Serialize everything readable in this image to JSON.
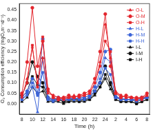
{
  "chart_data": {
    "type": "line",
    "x_label": "Time (h)",
    "y_label": "O₂ Consumption efficiency (mgO₂m⁻²d⁻¹)",
    "categories": [
      "8",
      null,
      "10",
      null,
      "12",
      null,
      "14",
      null,
      "16",
      null,
      "18",
      null,
      "20",
      null,
      "22",
      null,
      "24",
      null,
      "2",
      null,
      "4",
      null,
      "6",
      null,
      "8"
    ],
    "series": [
      {
        "name": "O-L",
        "color": "#e3262d",
        "marker": "triangle",
        "values": [
          0.03,
          0.12,
          0.27,
          0.1,
          0.22,
          0.05,
          0.04,
          0.03,
          0.03,
          0.03,
          0.04,
          0.03,
          0.04,
          0.05,
          0.1,
          0.2,
          0.38,
          0.22,
          0.06,
          0.04,
          0.03,
          0.03,
          0.03,
          0.03,
          0.04
        ]
      },
      {
        "name": "O-M",
        "color": "#e3262d",
        "marker": "circle",
        "values": [
          0.05,
          0.2,
          0.46,
          0.18,
          0.3,
          0.07,
          0.03,
          0.02,
          0.03,
          0.04,
          0.03,
          0.04,
          0.05,
          0.06,
          0.12,
          0.25,
          0.43,
          0.18,
          0.05,
          0.03,
          0.04,
          0.03,
          0.02,
          0.03,
          0.05
        ]
      },
      {
        "name": "O-H",
        "color": "#e3262d",
        "marker": "square",
        "values": [
          0.04,
          0.1,
          0.28,
          0.08,
          0.32,
          0.06,
          0.04,
          0.03,
          0.02,
          0.03,
          0.03,
          0.04,
          0.04,
          0.05,
          0.1,
          0.18,
          0.3,
          0.25,
          0.05,
          0.04,
          0.03,
          0.03,
          0.03,
          0.02,
          0.04
        ]
      },
      {
        "name": "H-L",
        "color": "#3c64d8",
        "marker": "triangle",
        "values": [
          0.02,
          0.04,
          0.08,
          -0.04,
          0.22,
          0.02,
          0.01,
          0.02,
          0.02,
          0.02,
          0.03,
          0.02,
          0.03,
          0.04,
          0.06,
          0.12,
          0.22,
          0.2,
          0.04,
          0.02,
          0.02,
          0.02,
          0.01,
          0.02,
          0.03
        ]
      },
      {
        "name": "H-M",
        "color": "#3c64d8",
        "marker": "circle",
        "values": [
          0.03,
          0.06,
          0.12,
          0.05,
          0.31,
          0.03,
          0.02,
          0.03,
          0.02,
          0.03,
          0.02,
          0.03,
          0.03,
          0.04,
          0.08,
          0.15,
          0.25,
          0.26,
          0.03,
          0.03,
          0.02,
          0.02,
          0.02,
          0.03,
          0.03
        ]
      },
      {
        "name": "H-H",
        "color": "#3c64d8",
        "marker": "square",
        "values": [
          0.02,
          0.05,
          0.1,
          0.04,
          0.15,
          0.02,
          0.02,
          0.02,
          0.02,
          0.02,
          0.03,
          0.02,
          0.02,
          0.03,
          0.06,
          0.1,
          0.17,
          0.14,
          0.03,
          0.02,
          0.02,
          0.02,
          0.02,
          0.02,
          0.03
        ]
      },
      {
        "name": "I-L",
        "color": "#111111",
        "marker": "triangle",
        "values": [
          0.01,
          0.03,
          0.08,
          0.05,
          0.06,
          0.01,
          0.01,
          0.01,
          0.0,
          0.01,
          0.01,
          0.01,
          0.01,
          0.02,
          0.04,
          0.08,
          0.12,
          0.07,
          0.02,
          0.01,
          0.01,
          0.01,
          0.0,
          0.01,
          0.02
        ]
      },
      {
        "name": "I-M",
        "color": "#111111",
        "marker": "circle",
        "values": [
          0.04,
          0.1,
          0.2,
          0.13,
          0.1,
          0.03,
          0.02,
          0.02,
          0.01,
          0.02,
          0.02,
          0.02,
          0.02,
          0.03,
          0.06,
          0.1,
          0.18,
          0.1,
          0.03,
          0.02,
          0.02,
          0.02,
          0.01,
          0.02,
          0.03
        ]
      },
      {
        "name": "I-H",
        "color": "#111111",
        "marker": "square",
        "values": [
          0.03,
          0.06,
          0.13,
          0.09,
          0.08,
          0.02,
          0.01,
          0.02,
          0.01,
          0.01,
          0.02,
          0.01,
          0.02,
          0.02,
          0.05,
          0.08,
          0.14,
          0.09,
          0.02,
          0.01,
          0.01,
          0.01,
          0.0,
          0.01,
          0.02
        ]
      }
    ],
    "ylim": [
      -0.05,
      0.48
    ],
    "yticks": [
      {
        "value": 0,
        "label": "0.00"
      },
      {
        "value": 0.05,
        "label": "0.05"
      },
      {
        "value": 0.1,
        "label": "0.10"
      },
      {
        "value": 0.15,
        "label": "0.15"
      },
      {
        "value": 0.2,
        "label": "0.20"
      },
      {
        "value": 0.25,
        "label": "0.25"
      },
      {
        "value": 0.3,
        "label": "0.30"
      },
      {
        "value": 0.35,
        "label": "0.35"
      },
      {
        "value": 0.4,
        "label": "0.40"
      },
      {
        "value": 0.45,
        "label": "0.45"
      }
    ],
    "grid": false,
    "legend": "upper right"
  }
}
